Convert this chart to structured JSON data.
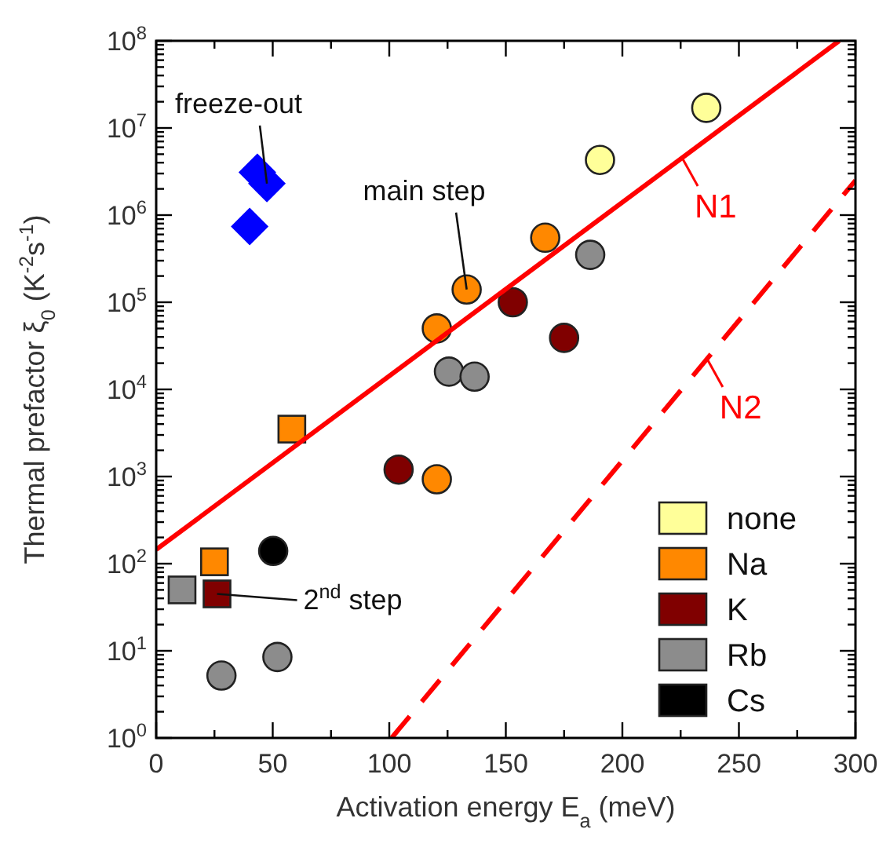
{
  "chart_data": {
    "type": "scatter",
    "xlabel": "Activation energy E$_{a}$ (meV)",
    "ylabel": "Thermal prefactor ξ$_{0}$ (K$^{-2}$s$^{-1}$)",
    "log": "y",
    "xlim": [
      0,
      300
    ],
    "xticks": [
      0,
      50,
      100,
      150,
      200,
      250,
      300
    ],
    "ylim": [
      1,
      100000000
    ],
    "yticks": [
      {
        "value": 1,
        "label": "10$^{0}$"
      },
      {
        "value": 10,
        "label": "10$^{1}$"
      },
      {
        "value": 100,
        "label": "10$^{2}$"
      },
      {
        "value": 1000,
        "label": "10$^{3}$"
      },
      {
        "value": 10000,
        "label": "10$^{4}$"
      },
      {
        "value": 100000,
        "label": "10$^{5}$"
      },
      {
        "value": 1000000,
        "label": "10$^{6}$"
      },
      {
        "value": 10000000,
        "label": "10$^{7}$"
      },
      {
        "value": 100000000,
        "label": "10$^{8}$"
      }
    ],
    "grid": false,
    "legend": "bottom right",
    "series": [
      {
        "name": "none",
        "color": "#ffff99",
        "marker": "circle",
        "x": [
          236,
          190.4
        ],
        "values": [
          17000000,
          4300000
        ]
      },
      {
        "name": "Na",
        "color": "#ff8800",
        "marker": "circle",
        "x": [
          166.9,
          133.2,
          120.4,
          120.4
        ],
        "values": [
          550000,
          140000,
          50000,
          930
        ]
      },
      {
        "name": "K",
        "color": "#800000",
        "marker": "circle",
        "x": [
          153,
          175,
          104
        ],
        "values": [
          100000,
          39000,
          1200
        ]
      },
      {
        "name": "Rb",
        "color": "#8c8c8c",
        "marker": "circle",
        "x": [
          186.2,
          125.6,
          136.6,
          28,
          52
        ],
        "values": [
          350000,
          16000,
          14000,
          5.2,
          8.5
        ]
      },
      {
        "name": "Cs",
        "color": "#000000",
        "marker": "circle",
        "x": [
          50.2
        ],
        "values": [
          140
        ]
      },
      {
        "color": "#ff8800",
        "marker": "square",
        "x": [
          58.2,
          25
        ],
        "values": [
          3500,
          105
        ]
      },
      {
        "color": "#800000",
        "marker": "square",
        "x": [
          26.1
        ],
        "values": [
          45
        ]
      },
      {
        "color": "#8c8c8c",
        "marker": "square",
        "x": [
          11.1
        ],
        "values": [
          50
        ]
      },
      {
        "color": "#0000ff",
        "marker": "diamond",
        "x": [
          43.4,
          47.5,
          40.1
        ],
        "values": [
          3100000,
          2300000,
          740000
        ]
      },
      {
        "name": "N1",
        "type": "line",
        "color": "#ff0000",
        "line_style": "solid",
        "x": [
          0,
          293
        ],
        "values": [
          145,
          100000000
        ]
      },
      {
        "name": "N2",
        "type": "line",
        "color": "#ff0000",
        "line_style": "dashed",
        "x": [
          101,
          300
        ],
        "values": [
          1,
          2500000
        ]
      }
    ],
    "annotations": [
      {
        "text": "freeze-out",
        "x": 47.5,
        "y": 2300000
      },
      {
        "text": "main step",
        "x": 133.2,
        "y": 140000
      },
      {
        "text": "2$^{nd}$ step",
        "x": 26.1,
        "y": 45
      }
    ]
  }
}
